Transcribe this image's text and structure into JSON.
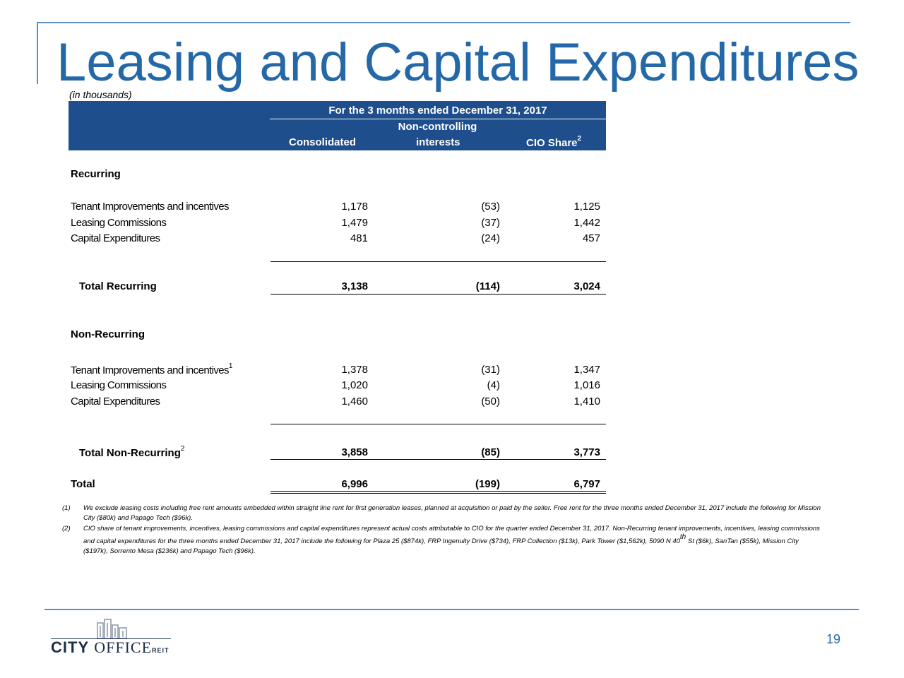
{
  "title": "Leasing and Capital Expenditures",
  "units": "(in thousands)",
  "header": {
    "period": "For the 3 months ended December 31, 2017",
    "col1": "Consolidated",
    "col2_line1": "Non-controlling",
    "col2_line2": "interests",
    "col3": "CIO Share",
    "col3_sup": "2"
  },
  "recurring": {
    "heading": "Recurring",
    "rows": [
      {
        "label": "Tenant Improvements and incentives",
        "consolidated": "1,178",
        "nci": "(53)",
        "cio": "1,125"
      },
      {
        "label": "Leasing Commissions",
        "consolidated": "1,479",
        "nci": "(37)",
        "cio": "1,442"
      },
      {
        "label": "Capital Expenditures",
        "consolidated": "481",
        "nci": "(24)",
        "cio": "457"
      }
    ],
    "total": {
      "label": "Total Recurring",
      "consolidated": "3,138",
      "nci": "(114)",
      "cio": "3,024"
    }
  },
  "nonrecurring": {
    "heading": "Non-Recurring",
    "rows": [
      {
        "label": "Tenant Improvements and incentives",
        "sup": "1",
        "consolidated": "1,378",
        "nci": "(31)",
        "cio": "1,347"
      },
      {
        "label": "Leasing Commissions",
        "consolidated": "1,020",
        "nci": "(4)",
        "cio": "1,016"
      },
      {
        "label": "Capital Expenditures",
        "consolidated": "1,460",
        "nci": "(50)",
        "cio": "1,410"
      }
    ],
    "total": {
      "label": "Total Non-Recurring",
      "sup": "2",
      "consolidated": "3,858",
      "nci": "(85)",
      "cio": "3,773"
    }
  },
  "grand_total": {
    "label": "Total",
    "consolidated": "6,996",
    "nci": "(199)",
    "cio": "6,797"
  },
  "footnotes": [
    {
      "num": "(1)",
      "text": "We exclude leasing costs including free rent amounts embedded within straight line rent for first generation leases, planned at acquisition or paid by the seller. Free rent for the three months ended December 31, 2017 include the following for Mission City ($80k) and Papago Tech ($96k)."
    },
    {
      "num": "(2)",
      "text_a": "CIO share of tenant improvements, incentives, leasing commissions and capital expenditures represent actual costs attributable to CIO for the quarter ended December 31, 2017.  Non-Recurring tenant improvements, incentives, leasing commissions and capital expenditures for the three months ended December 31, 2017 include the following for Plaza 25 ($874k), FRP Ingenuity Drive ($734), FRP Collection ($13k), Park Tower ($1,562k), 5090 N 40",
      "sup": "th",
      "text_b": " St ($6k), SanTan ($55k), Mission City ($197k), Sorrento Mesa ($236k) and Papago Tech ($96k)."
    }
  ],
  "logo": {
    "city": "CITY",
    "office": "OFFICE",
    "reit": "REIT"
  },
  "page_number": "19"
}
